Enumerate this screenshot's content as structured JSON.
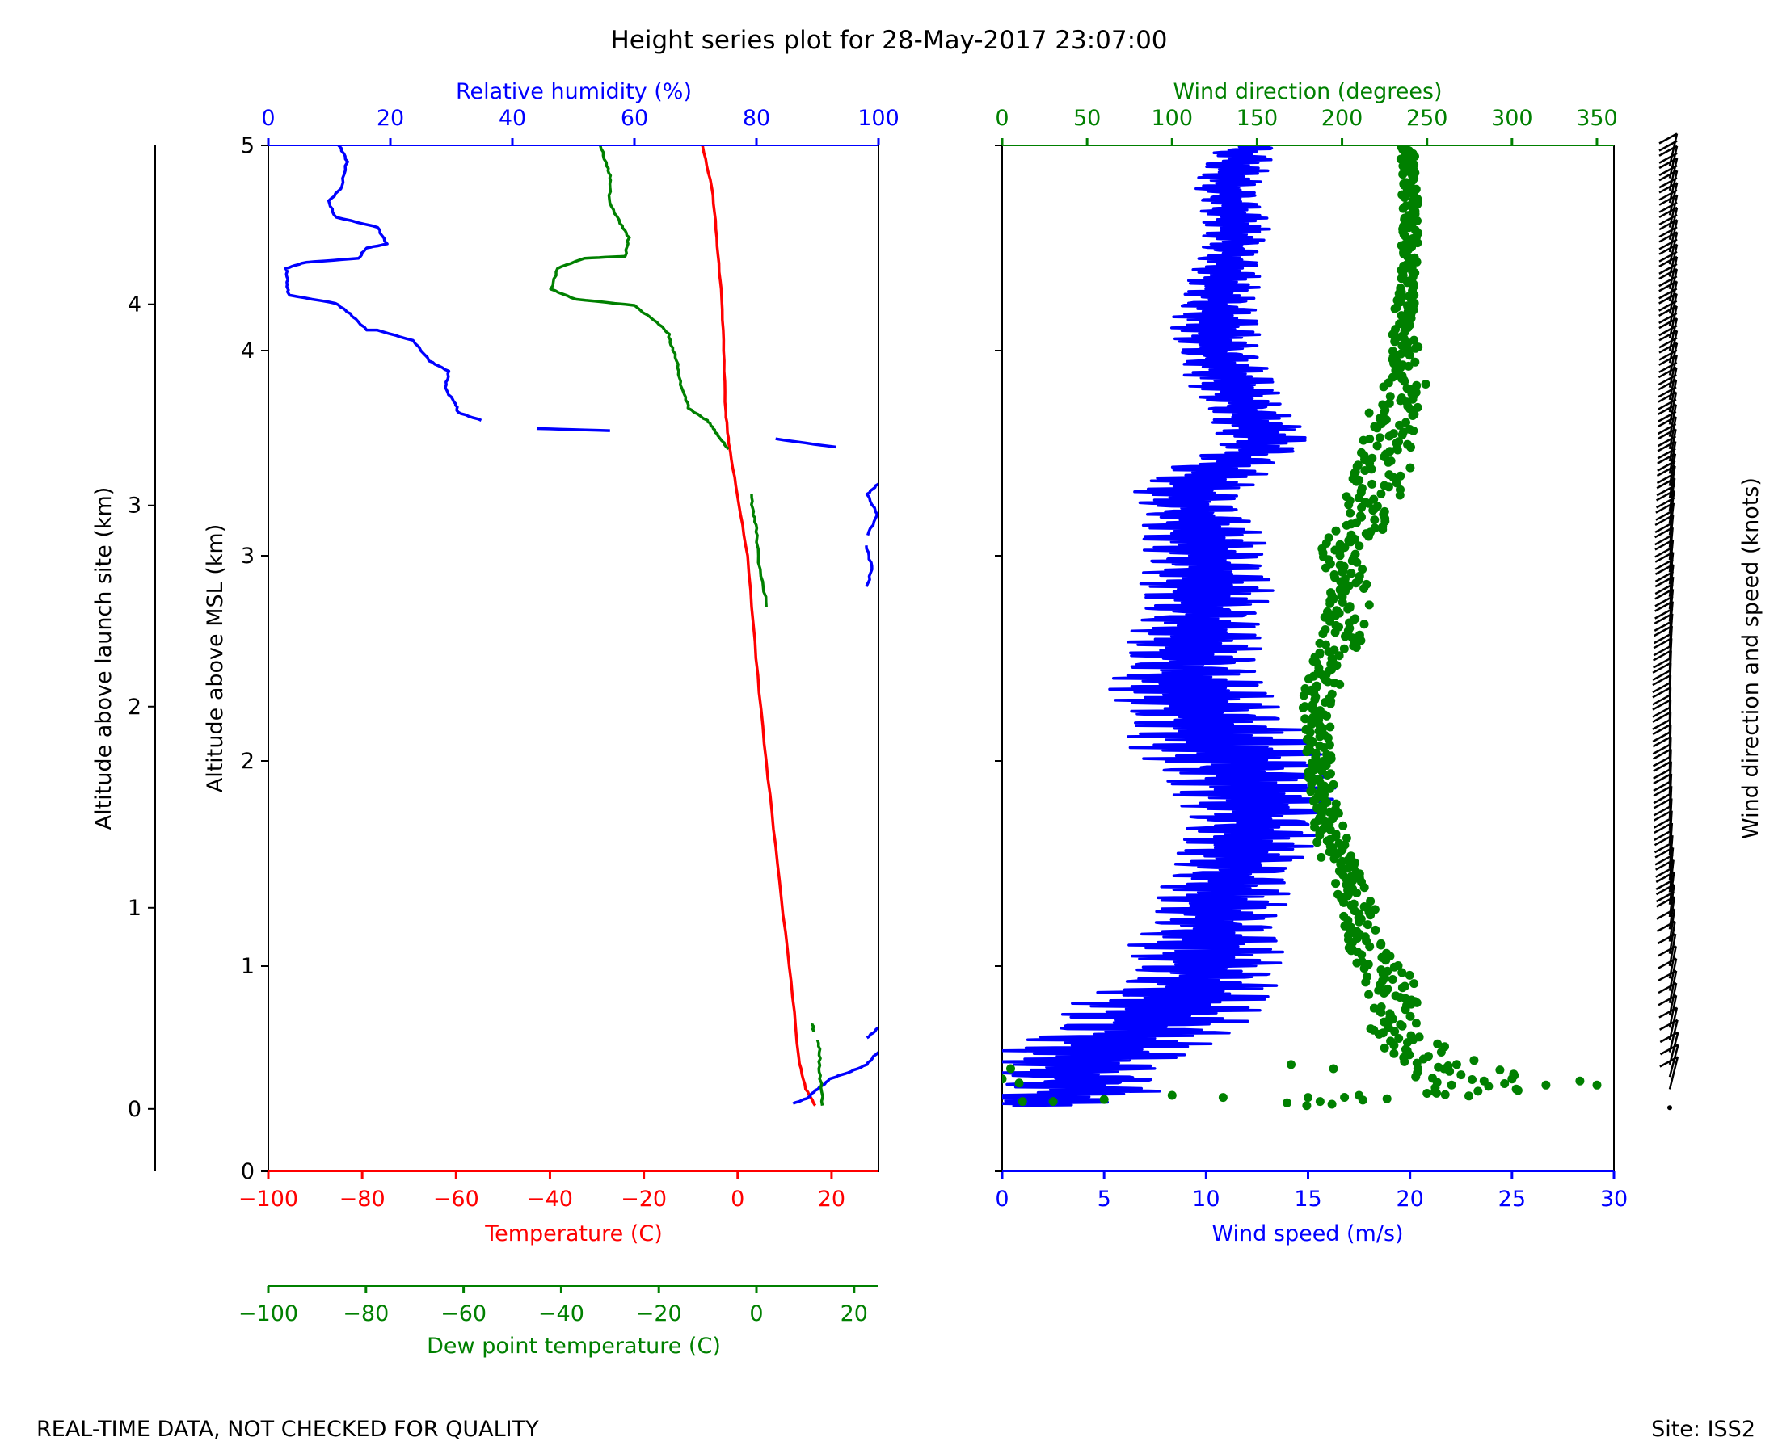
{
  "colors": {
    "black": "#000000",
    "temperature": "#ff0000",
    "humidity": "#0000ff",
    "dewpoint": "#008000",
    "wind_speed": "#0000ff",
    "wind_direction": "#008000"
  },
  "footer": {
    "left_note": "REAL-TIME DATA, NOT CHECKED FOR QUALITY",
    "right_note": "Site: ISS2"
  },
  "chart_data": [
    {
      "id": "thermo-panel",
      "type": "line",
      "title": "Height series plot for 28-May-2017 23:07:00",
      "ylabel_launch": "Altitude above launch site (km)",
      "ylabel_msl": "Altitude above MSL (km)",
      "ylim_msl": [
        0,
        5
      ],
      "ylim_launch": [
        -0.31,
        4.79
      ],
      "yticks_msl": [
        "0",
        "1",
        "2",
        "3",
        "4",
        "5"
      ],
      "yticks_launch": [
        "0",
        "1",
        "2",
        "3",
        "4"
      ],
      "temperature_axis": {
        "label": "Temperature (C)",
        "range": [
          -100,
          30
        ],
        "ticks": [
          -100,
          -80,
          -60,
          -40,
          -20,
          0,
          20
        ],
        "tick_labels": [
          "−100",
          "−80",
          "−60",
          "−40",
          "−20",
          "0",
          "20"
        ]
      },
      "dewpoint_axis": {
        "label": "Dew point temperature (C)",
        "range": [
          -100,
          25
        ],
        "ticks": [
          -100,
          -80,
          -60,
          -40,
          -20,
          0,
          20
        ],
        "tick_labels": [
          "−100",
          "−80",
          "−60",
          "−40",
          "−20",
          "0",
          "20"
        ]
      },
      "humidity_axis": {
        "label": "Relative humidity (%)",
        "range": [
          0,
          100
        ],
        "ticks": [
          0,
          20,
          40,
          60,
          80,
          100
        ],
        "tick_labels": [
          "0",
          "20",
          "40",
          "60",
          "80",
          "100"
        ]
      },
      "series": [
        {
          "name": "Temperature",
          "axis": "temperature",
          "segments": [
            [
              [
                16.5,
                0.32
              ],
              [
                14.5,
                0.4
              ],
              [
                13,
                0.55
              ],
              [
                11,
                1.0
              ],
              [
                8.5,
                1.5
              ],
              [
                6,
                2.0
              ],
              [
                4,
                2.5
              ],
              [
                2,
                3.0
              ],
              [
                0,
                3.3
              ],
              [
                -2,
                3.55
              ],
              [
                -2.5,
                3.7
              ],
              [
                -3,
                4.0
              ],
              [
                -3.5,
                4.3
              ],
              [
                -4.5,
                4.55
              ],
              [
                -5.5,
                4.8
              ],
              [
                -7.5,
                5.0
              ]
            ]
          ]
        },
        {
          "name": "Relative humidity",
          "axis": "humidity",
          "segments": [
            [
              [
                86,
                0.33
              ],
              [
                88.5,
                0.36
              ],
              [
                90,
                0.4
              ],
              [
                92,
                0.45
              ],
              [
                95,
                0.48
              ],
              [
                98,
                0.52
              ],
              [
                100,
                0.58
              ]
            ],
            [
              [
                98,
                0.65
              ],
              [
                100,
                0.7
              ]
            ],
            [
              [
                98,
                2.85
              ],
              [
                99,
                2.95
              ],
              [
                98,
                3.05
              ]
            ],
            [
              [
                98,
                3.1
              ],
              [
                100,
                3.2
              ],
              [
                98,
                3.3
              ],
              [
                100,
                3.35
              ]
            ],
            [
              [
                44,
                3.62
              ],
              [
                56,
                3.61
              ]
            ],
            [
              [
                83,
                3.57
              ],
              [
                93,
                3.53
              ]
            ],
            [
              [
                35,
                3.66
              ],
              [
                31,
                3.7
              ],
              [
                30.5,
                3.75
              ],
              [
                29,
                3.82
              ],
              [
                29.5,
                3.9
              ],
              [
                26.5,
                3.95
              ],
              [
                23.5,
                4.05
              ],
              [
                18,
                4.1
              ],
              [
                16,
                4.1
              ],
              [
                13.5,
                4.18
              ],
              [
                11,
                4.23
              ],
              [
                3.5,
                4.27
              ],
              [
                3,
                4.32
              ],
              [
                3,
                4.4
              ],
              [
                6,
                4.43
              ],
              [
                15,
                4.45
              ],
              [
                16,
                4.5
              ],
              [
                19.5,
                4.52
              ],
              [
                18,
                4.6
              ],
              [
                11,
                4.65
              ],
              [
                10,
                4.73
              ],
              [
                12,
                4.8
              ],
              [
                13,
                4.92
              ],
              [
                11.5,
                5.0
              ]
            ]
          ]
        },
        {
          "name": "Dew point temperature",
          "axis": "dewpoint",
          "segments": [
            [
              [
                13.5,
                0.32
              ],
              [
                13,
                0.45
              ],
              [
                13,
                0.55
              ],
              [
                12.5,
                0.64
              ]
            ],
            [
              [
                11.5,
                0.68
              ],
              [
                11.5,
                0.72
              ]
            ],
            [
              [
                2,
                2.75
              ],
              [
                1,
                2.9
              ],
              [
                0,
                3.1
              ],
              [
                -0.5,
                3.2
              ],
              [
                -1,
                3.3
              ]
            ],
            [
              [
                -6,
                3.52
              ],
              [
                -7.5,
                3.58
              ],
              [
                -9,
                3.62
              ],
              [
                -10,
                3.66
              ],
              [
                -14,
                3.72
              ],
              [
                -15,
                3.8
              ],
              [
                -16,
                3.9
              ],
              [
                -17,
                4.0
              ],
              [
                -18,
                4.08
              ],
              [
                -21,
                4.15
              ],
              [
                -25,
                4.22
              ],
              [
                -37,
                4.25
              ],
              [
                -42,
                4.3
              ],
              [
                -41,
                4.4
              ],
              [
                -35,
                4.45
              ],
              [
                -27,
                4.46
              ],
              [
                -26,
                4.55
              ],
              [
                -28,
                4.62
              ],
              [
                -30,
                4.72
              ],
              [
                -30,
                4.83
              ],
              [
                -30.5,
                4.9
              ],
              [
                -32,
                5.0
              ]
            ]
          ]
        }
      ]
    },
    {
      "id": "wind-panel",
      "type": "line+scatter",
      "ylim_msl": [
        0,
        5
      ],
      "wind_speed_axis": {
        "label": "Wind speed (m/s)",
        "range": [
          0,
          30
        ],
        "ticks": [
          0,
          5,
          10,
          15,
          20,
          25,
          30
        ],
        "tick_labels": [
          "0",
          "5",
          "10",
          "15",
          "20",
          "25",
          "30"
        ]
      },
      "wind_direction_axis": {
        "label": "Wind direction (degrees)",
        "range": [
          0,
          360
        ],
        "ticks": [
          0,
          50,
          100,
          150,
          200,
          250,
          300,
          350
        ],
        "tick_labels": [
          "0",
          "50",
          "100",
          "150",
          "200",
          "250",
          "300",
          "350"
        ]
      },
      "barb_label": "Wind direction and speed (knots)",
      "wind_speed_profile": [
        [
          0.5,
          0.32
        ],
        [
          2.5,
          0.35
        ],
        [
          4,
          0.4
        ],
        [
          3.5,
          0.5
        ],
        [
          5,
          0.6
        ],
        [
          7,
          0.7
        ],
        [
          8,
          0.8
        ],
        [
          9.5,
          0.9
        ],
        [
          10,
          1.0
        ],
        [
          10,
          1.1
        ],
        [
          10.5,
          1.25
        ],
        [
          11,
          1.4
        ],
        [
          12,
          1.6
        ],
        [
          12.5,
          1.8
        ],
        [
          11.5,
          2.0
        ],
        [
          10,
          2.2
        ],
        [
          9,
          2.4
        ],
        [
          9.5,
          2.6
        ],
        [
          10,
          2.8
        ],
        [
          10,
          3.0
        ],
        [
          9.5,
          3.2
        ],
        [
          9,
          3.3
        ],
        [
          11,
          3.45
        ],
        [
          13,
          3.55
        ],
        [
          12,
          3.7
        ],
        [
          11,
          3.9
        ],
        [
          10.5,
          4.0
        ],
        [
          10.5,
          4.2
        ],
        [
          11,
          4.4
        ],
        [
          11.5,
          4.6
        ],
        [
          11,
          4.8
        ],
        [
          12,
          5.0
        ]
      ],
      "wind_speed_jitter": [
        3.0,
        3.5,
        4.0,
        4.0,
        4.5,
        5.0,
        4.5,
        4.0,
        3.5,
        3.5,
        3.0,
        3.0,
        3.0,
        3.5,
        4.5,
        4.0,
        3.5,
        3.0,
        3.0,
        3.0,
        2.5,
        2.5,
        2.5,
        2.0,
        2.0,
        2.0,
        2.0,
        2.0,
        1.5,
        1.5,
        1.5,
        1.5
      ],
      "wind_direction_profile": [
        [
          180,
          0.32
        ],
        [
          290,
          0.4
        ],
        [
          250,
          0.55
        ],
        [
          230,
          0.7
        ],
        [
          230,
          0.9
        ],
        [
          215,
          1.1
        ],
        [
          210,
          1.3
        ],
        [
          195,
          1.55
        ],
        [
          190,
          1.8
        ],
        [
          185,
          2.1
        ],
        [
          185,
          2.3
        ],
        [
          200,
          2.6
        ],
        [
          205,
          2.8
        ],
        [
          200,
          3.0
        ],
        [
          215,
          3.2
        ],
        [
          225,
          3.45
        ],
        [
          230,
          3.7
        ],
        [
          240,
          3.9
        ],
        [
          235,
          4.1
        ],
        [
          240,
          4.4
        ],
        [
          240,
          4.8
        ],
        [
          238,
          5.0
        ]
      ],
      "wind_direction_spread": [
        40,
        40,
        25,
        15,
        15,
        12,
        10,
        10,
        8,
        8,
        10,
        12,
        14,
        14,
        16,
        16,
        14,
        12,
        6,
        5,
        5,
        5
      ]
    }
  ]
}
